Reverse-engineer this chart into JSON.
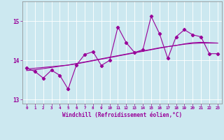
{
  "xlabel": "Windchill (Refroidissement éolien,°C)",
  "x_data": [
    0,
    1,
    2,
    3,
    4,
    5,
    6,
    7,
    8,
    9,
    10,
    11,
    12,
    13,
    14,
    15,
    16,
    17,
    18,
    19,
    20,
    21,
    22,
    23
  ],
  "y_main": [
    13.8,
    13.72,
    13.55,
    13.75,
    13.62,
    13.27,
    13.88,
    14.15,
    14.22,
    13.87,
    14.0,
    14.85,
    14.45,
    14.2,
    14.27,
    15.12,
    14.68,
    14.05,
    14.6,
    14.78,
    14.65,
    14.6,
    14.17,
    14.17
  ],
  "y_trend1": [
    13.78,
    13.8,
    13.82,
    13.84,
    13.86,
    13.88,
    13.92,
    13.96,
    14.0,
    14.04,
    14.08,
    14.12,
    14.16,
    14.2,
    14.24,
    14.28,
    14.32,
    14.35,
    14.38,
    14.41,
    14.43,
    14.44,
    14.44,
    14.44
  ],
  "y_trend2": [
    13.74,
    13.76,
    13.79,
    13.82,
    13.85,
    13.88,
    13.91,
    13.95,
    13.99,
    14.03,
    14.07,
    14.11,
    14.15,
    14.19,
    14.23,
    14.27,
    14.31,
    14.35,
    14.38,
    14.42,
    14.45,
    14.46,
    14.45,
    14.44
  ],
  "line_color": "#990099",
  "bg_color": "#cce8f0",
  "grid_color": "#b8d8e0",
  "ylim": [
    12.9,
    15.5
  ],
  "xlim": [
    -0.5,
    23.5
  ],
  "yticks": [
    13,
    14,
    15
  ],
  "xticks": [
    0,
    1,
    2,
    3,
    4,
    5,
    6,
    7,
    8,
    9,
    10,
    11,
    12,
    13,
    14,
    15,
    16,
    17,
    18,
    19,
    20,
    21,
    22,
    23
  ]
}
